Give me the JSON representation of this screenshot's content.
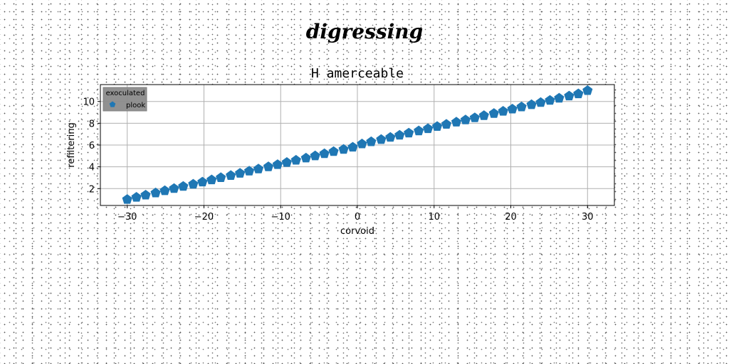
{
  "suptitle": "digressing",
  "chart_data": {
    "type": "scatter",
    "title": "H amerceable",
    "xlabel": "corvoid",
    "ylabel": "refiltering",
    "xlim": [
      -33.5,
      33.5
    ],
    "ylim": [
      0.45,
      11.55
    ],
    "xticks": [
      -30,
      -20,
      -10,
      0,
      10,
      20,
      30
    ],
    "xtick_labels": [
      "−30",
      "−20",
      "−10",
      "0",
      "10",
      "20",
      "30"
    ],
    "yticks": [
      2,
      4,
      6,
      8,
      10
    ],
    "ytick_labels": [
      "2",
      "4",
      "6",
      "8",
      "10"
    ],
    "grid": true,
    "legend": {
      "title": "exoculated",
      "placement": "top-left",
      "entries": [
        "plook"
      ]
    },
    "series": [
      {
        "name": "plook",
        "color": "#1f77b4",
        "marker": "pentagon",
        "x": [
          -30,
          -28.8,
          -27.6,
          -26.3,
          -25.1,
          -23.9,
          -22.7,
          -21.4,
          -20.2,
          -19,
          -17.8,
          -16.5,
          -15.3,
          -14.1,
          -12.9,
          -11.6,
          -10.4,
          -9.2,
          -8,
          -6.7,
          -5.5,
          -4.3,
          -3.1,
          -1.8,
          -0.6,
          0.6,
          1.8,
          3.1,
          4.3,
          5.5,
          6.7,
          8,
          9.2,
          10.4,
          11.6,
          12.9,
          14.1,
          15.3,
          16.5,
          17.8,
          19,
          20.2,
          21.4,
          22.7,
          23.9,
          25.1,
          26.3,
          27.6,
          28.8,
          30
        ],
        "y": [
          1,
          1.2,
          1.4,
          1.6,
          1.8,
          2,
          2.2,
          2.4,
          2.6,
          2.8,
          3,
          3.2,
          3.4,
          3.6,
          3.8,
          4,
          4.2,
          4.4,
          4.6,
          4.8,
          5,
          5.2,
          5.4,
          5.6,
          5.8,
          6.1,
          6.3,
          6.5,
          6.7,
          6.9,
          7.1,
          7.3,
          7.5,
          7.7,
          7.9,
          8.1,
          8.3,
          8.5,
          8.7,
          8.9,
          9.1,
          9.3,
          9.5,
          9.7,
          9.9,
          10.1,
          10.3,
          10.5,
          10.7,
          11
        ]
      }
    ]
  }
}
